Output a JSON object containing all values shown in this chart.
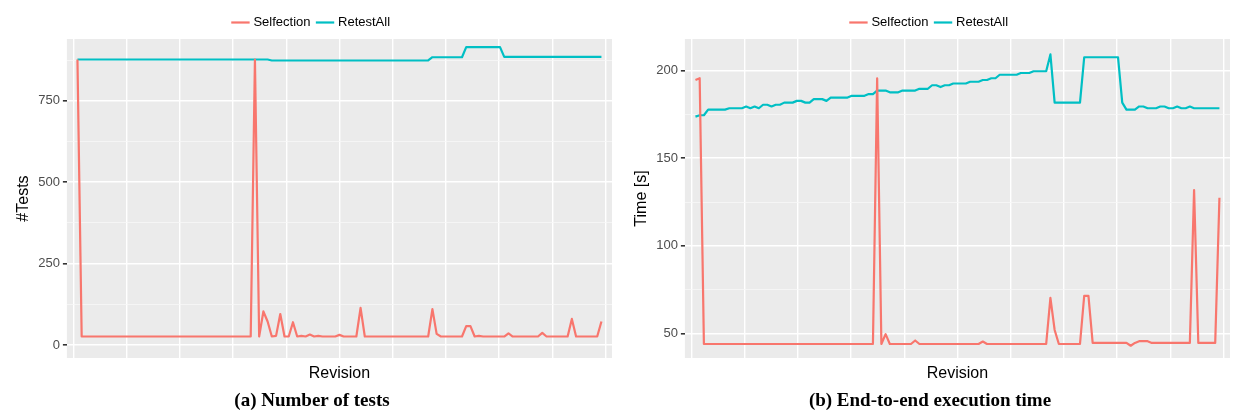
{
  "chart_data": [
    {
      "type": "line",
      "title": "(a) Number of tests",
      "xlabel": "Revision",
      "ylabel": "#Tests",
      "legend": "top",
      "grid": true,
      "tick_labels": "y",
      "ylim": [
        -40,
        940
      ],
      "categories": [
        null,
        null,
        null,
        null,
        null,
        null,
        null,
        null,
        null,
        null,
        null,
        null,
        null,
        null,
        null,
        null,
        null,
        null,
        null,
        null,
        null,
        null,
        null,
        null,
        null,
        null,
        null,
        null,
        null,
        null,
        null,
        null,
        null,
        null,
        null,
        null,
        null,
        null,
        null,
        null,
        null,
        null,
        null,
        null,
        null,
        null,
        null,
        null,
        null,
        null,
        null,
        null,
        null,
        null,
        null,
        null,
        null,
        null,
        null,
        null,
        null,
        null,
        null,
        null,
        null,
        null,
        null,
        null,
        null,
        null,
        null,
        null,
        null,
        null,
        null,
        null,
        null,
        null,
        null,
        null,
        null,
        null,
        null,
        null,
        null,
        null,
        null,
        null,
        null,
        null,
        null,
        null,
        null,
        null,
        null,
        null,
        null,
        null,
        null,
        null,
        null,
        null,
        null,
        null,
        null,
        null,
        null,
        null,
        null,
        null,
        null,
        null,
        null,
        null,
        null,
        null,
        null,
        null,
        null,
        null,
        null,
        null,
        null,
        null,
        null
      ],
      "yticks": [
        0,
        {
          "value": 125,
          "label": null
        },
        250,
        {
          "value": 375,
          "label": null
        },
        500,
        {
          "value": 625,
          "label": null
        },
        750,
        {
          "value": 875,
          "label": null
        }
      ],
      "series": [
        {
          "name": "Selfection",
          "color": "#f8766d",
          "values": [
            877,
            26,
            26,
            26,
            26,
            26,
            26,
            26,
            26,
            26,
            26,
            26,
            26,
            26,
            26,
            26,
            26,
            26,
            26,
            26,
            26,
            26,
            26,
            26,
            26,
            26,
            26,
            26,
            26,
            26,
            26,
            26,
            26,
            26,
            26,
            26,
            26,
            26,
            26,
            26,
            26,
            26,
            877,
            26,
            103,
            72,
            26,
            28,
            95,
            26,
            26,
            70,
            26,
            28,
            26,
            32,
            26,
            28,
            26,
            26,
            26,
            26,
            31,
            26,
            26,
            26,
            26,
            114,
            26,
            26,
            26,
            26,
            26,
            26,
            26,
            26,
            26,
            26,
            26,
            26,
            26,
            26,
            26,
            26,
            110,
            34,
            26,
            26,
            26,
            26,
            26,
            26,
            58,
            58,
            26,
            28,
            26,
            26,
            26,
            26,
            26,
            26,
            36,
            26,
            26,
            26,
            26,
            26,
            26,
            26,
            37,
            26,
            26,
            26,
            26,
            26,
            26,
            80,
            26,
            26,
            26,
            26,
            26,
            26,
            72
          ]
        },
        {
          "name": "RetestAll",
          "color": "#00bfc4",
          "values": [
            877,
            877,
            877,
            877,
            877,
            877,
            877,
            877,
            877,
            877,
            877,
            877,
            877,
            877,
            877,
            877,
            877,
            877,
            877,
            877,
            877,
            877,
            877,
            877,
            877,
            877,
            877,
            877,
            877,
            877,
            877,
            877,
            877,
            877,
            877,
            877,
            877,
            877,
            877,
            877,
            877,
            877,
            877,
            877,
            877,
            877,
            874,
            874,
            874,
            874,
            874,
            874,
            874,
            874,
            874,
            874,
            874,
            874,
            874,
            874,
            874,
            874,
            874,
            874,
            874,
            874,
            874,
            874,
            874,
            874,
            874,
            874,
            874,
            874,
            874,
            874,
            874,
            874,
            874,
            874,
            874,
            874,
            874,
            874,
            884,
            884,
            884,
            884,
            884,
            884,
            884,
            884,
            915,
            915,
            915,
            915,
            915,
            915,
            915,
            915,
            915,
            885,
            885,
            885,
            885,
            885,
            885,
            885,
            885,
            885,
            885,
            885,
            885,
            885,
            885,
            885,
            885,
            885,
            885,
            885,
            885,
            885,
            885,
            885,
            885
          ]
        }
      ]
    },
    {
      "type": "line",
      "title": "(b) End-to-end execution time",
      "xlabel": "Revision",
      "ylabel": "Time [s]",
      "legend": "top",
      "grid": true,
      "tick_labels": "y",
      "ylim": [
        36,
        218
      ],
      "categories": [
        null,
        null,
        null,
        null,
        null,
        null,
        null,
        null,
        null,
        null,
        null,
        null,
        null,
        null,
        null,
        null,
        null,
        null,
        null,
        null,
        null,
        null,
        null,
        null,
        null,
        null,
        null,
        null,
        null,
        null,
        null,
        null,
        null,
        null,
        null,
        null,
        null,
        null,
        null,
        null,
        null,
        null,
        null,
        null,
        null,
        null,
        null,
        null,
        null,
        null,
        null,
        null,
        null,
        null,
        null,
        null,
        null,
        null,
        null,
        null,
        null,
        null,
        null,
        null,
        null,
        null,
        null,
        null,
        null,
        null,
        null,
        null,
        null,
        null,
        null,
        null,
        null,
        null,
        null,
        null,
        null,
        null,
        null,
        null,
        null,
        null,
        null,
        null,
        null,
        null,
        null,
        null,
        null,
        null,
        null,
        null,
        null,
        null,
        null,
        null,
        null,
        null,
        null,
        null,
        null,
        null,
        null,
        null,
        null,
        null,
        null,
        null,
        null,
        null,
        null,
        null,
        null,
        null,
        null,
        null,
        null,
        null,
        null,
        null,
        null
      ],
      "yticks": [
        50,
        {
          "value": 75,
          "label": null
        },
        100,
        {
          "value": 125,
          "label": null
        },
        150,
        {
          "value": 175,
          "label": null
        },
        200
      ],
      "series": [
        {
          "name": "Selfection",
          "color": "#f8766d",
          "values": [
            194.6,
            195.6,
            44,
            44,
            44,
            44,
            44,
            44,
            44,
            44,
            44,
            44,
            44,
            44,
            44,
            44,
            44,
            44,
            44,
            44,
            44,
            44,
            44,
            44,
            44,
            44,
            44,
            44,
            44,
            44,
            44,
            44,
            44,
            44,
            44,
            44,
            44,
            44,
            44,
            44,
            44,
            44,
            44,
            195.6,
            44,
            49.6,
            44,
            44,
            44,
            44,
            44,
            44,
            46,
            44,
            44,
            44,
            44,
            44,
            44,
            44,
            44,
            44,
            44,
            44,
            44,
            44,
            44,
            44,
            45.4,
            44,
            44,
            44,
            44,
            44,
            44,
            44,
            44,
            44,
            44,
            44,
            44,
            44,
            44,
            44,
            70.3,
            52,
            44,
            44,
            44,
            44,
            44,
            44,
            71.5,
            71.5,
            44.6,
            44.6,
            44.6,
            44.6,
            44.6,
            44.6,
            44.6,
            44.6,
            44.6,
            43,
            44.6,
            45.6,
            45.6,
            45.6,
            44.6,
            44.6,
            44.6,
            44.6,
            44.6,
            44.6,
            44.6,
            44.6,
            44.6,
            44.6,
            131.8,
            44.6,
            44.6,
            44.6,
            44.6,
            44.6,
            127.4
          ]
        },
        {
          "name": "RetestAll",
          "color": "#00bfc4",
          "values": [
            173.7,
            174.5,
            174.5,
            177.7,
            177.7,
            177.7,
            177.7,
            177.7,
            178.5,
            178.5,
            178.5,
            178.5,
            179.5,
            178.5,
            179.5,
            178.5,
            180.5,
            180.5,
            179.5,
            180.5,
            180.5,
            181.7,
            181.7,
            181.7,
            182.7,
            182.7,
            181.7,
            181.7,
            183.7,
            183.7,
            183.7,
            182.7,
            184.6,
            184.6,
            184.6,
            184.6,
            184.6,
            185.6,
            185.6,
            185.6,
            185.6,
            186.6,
            186.6,
            188.6,
            188.6,
            188.6,
            187.6,
            187.6,
            187.6,
            188.6,
            188.6,
            188.6,
            188.6,
            189.6,
            189.6,
            189.6,
            191.6,
            191.6,
            190.6,
            191.6,
            191.6,
            192.6,
            192.6,
            192.6,
            192.6,
            193.6,
            193.6,
            193.6,
            194.6,
            194.6,
            195.6,
            195.6,
            197.6,
            197.6,
            197.6,
            197.6,
            197.6,
            198.6,
            198.6,
            198.6,
            199.6,
            199.6,
            199.6,
            199.6,
            209.2,
            181.7,
            181.7,
            181.7,
            181.7,
            181.7,
            181.7,
            181.7,
            207.6,
            207.6,
            207.6,
            207.6,
            207.6,
            207.6,
            207.6,
            207.6,
            207.6,
            181.7,
            177.7,
            177.7,
            177.7,
            179.5,
            179.5,
            178.5,
            178.5,
            178.5,
            179.5,
            179.5,
            178.5,
            178.5,
            179.5,
            178.5,
            178.5,
            179.5,
            178.5,
            178.5,
            178.5,
            178.5,
            178.5,
            178.5,
            178.5
          ]
        }
      ]
    }
  ]
}
